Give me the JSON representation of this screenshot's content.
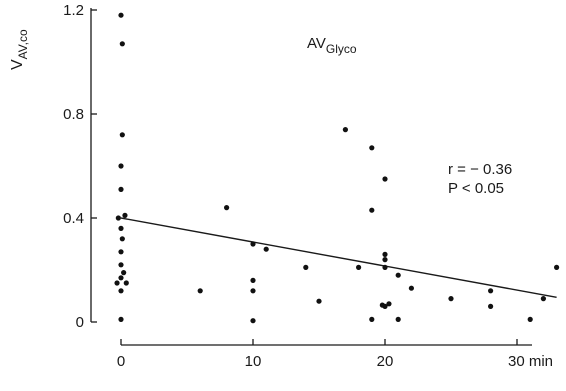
{
  "chart_data": {
    "type": "scatter",
    "ylabel": {
      "main": "V",
      "sub": "AV,co"
    },
    "xlim": [
      0,
      33
    ],
    "ylim": [
      0,
      1.2
    ],
    "x_ticks": [
      {
        "value": 0,
        "label": "0"
      },
      {
        "value": 10,
        "label": "10"
      },
      {
        "value": 20,
        "label": "20"
      },
      {
        "value": 30,
        "label": "30 min"
      }
    ],
    "y_ticks": [
      {
        "value": 0,
        "label": "0"
      },
      {
        "value": 0.4,
        "label": "0.4"
      },
      {
        "value": 0.8,
        "label": "0.8"
      },
      {
        "value": 1.2,
        "label": "1.2"
      }
    ],
    "annotation": {
      "main": "AV",
      "sub": "Glyco"
    },
    "stats": {
      "r": "r = − 0.36",
      "p": "P < 0.05"
    },
    "regression": {
      "x": [
        0,
        33
      ],
      "y": [
        0.4,
        0.095
      ]
    },
    "points": [
      {
        "x": 0,
        "y": 1.18
      },
      {
        "x": 0.1,
        "y": 1.07
      },
      {
        "x": 0.1,
        "y": 0.72
      },
      {
        "x": 0,
        "y": 0.6
      },
      {
        "x": 0,
        "y": 0.51
      },
      {
        "x": 0.3,
        "y": 0.41
      },
      {
        "x": -0.2,
        "y": 0.4
      },
      {
        "x": 0,
        "y": 0.36
      },
      {
        "x": 0.1,
        "y": 0.32
      },
      {
        "x": 0,
        "y": 0.27
      },
      {
        "x": 0,
        "y": 0.22
      },
      {
        "x": 0.2,
        "y": 0.19
      },
      {
        "x": 0,
        "y": 0.17
      },
      {
        "x": -0.3,
        "y": 0.15
      },
      {
        "x": 0.4,
        "y": 0.15
      },
      {
        "x": 0,
        "y": 0.12
      },
      {
        "x": 0,
        "y": 0.01
      },
      {
        "x": 6,
        "y": 0.12
      },
      {
        "x": 8,
        "y": 0.44
      },
      {
        "x": 10,
        "y": 0.3
      },
      {
        "x": 10,
        "y": 0.16
      },
      {
        "x": 10,
        "y": 0.12
      },
      {
        "x": 10,
        "y": 0.005
      },
      {
        "x": 11,
        "y": 0.28
      },
      {
        "x": 14,
        "y": 0.21
      },
      {
        "x": 15,
        "y": 0.08
      },
      {
        "x": 17,
        "y": 0.74
      },
      {
        "x": 18,
        "y": 0.21
      },
      {
        "x": 19,
        "y": 0.67
      },
      {
        "x": 19,
        "y": 0.43
      },
      {
        "x": 19,
        "y": 0.01
      },
      {
        "x": 20,
        "y": 0.55
      },
      {
        "x": 20,
        "y": 0.26
      },
      {
        "x": 20,
        "y": 0.24
      },
      {
        "x": 20,
        "y": 0.21
      },
      {
        "x": 20,
        "y": 0.06
      },
      {
        "x": 19.8,
        "y": 0.065
      },
      {
        "x": 20.3,
        "y": 0.07
      },
      {
        "x": 21,
        "y": 0.18
      },
      {
        "x": 21,
        "y": 0.01
      },
      {
        "x": 22,
        "y": 0.13
      },
      {
        "x": 25,
        "y": 0.09
      },
      {
        "x": 28,
        "y": 0.12
      },
      {
        "x": 28,
        "y": 0.06
      },
      {
        "x": 31,
        "y": 0.01
      },
      {
        "x": 32,
        "y": 0.09
      },
      {
        "x": 33,
        "y": 0.21
      }
    ]
  }
}
